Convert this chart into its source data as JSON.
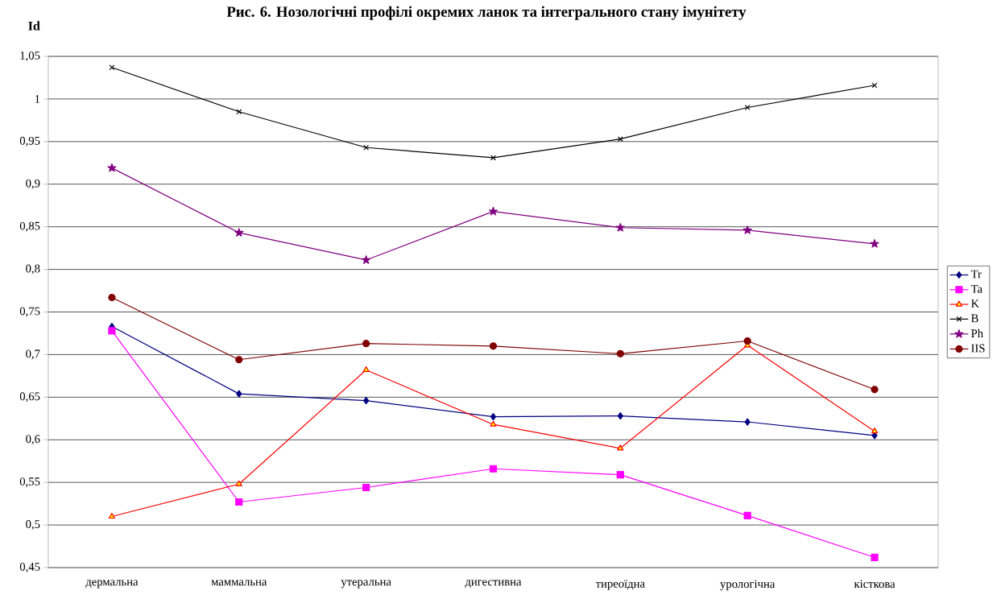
{
  "chart_data": {
    "type": "line",
    "title": "Рис. 6. Нозологічні профілі окремих ланок та інтегрального стану імунітету",
    "ylabel": "Id",
    "categories": [
      "дермальна",
      "маммальна",
      "утеральна",
      "дигестивна",
      "тиреоїдна",
      "урологічна",
      "кісткова"
    ],
    "series": [
      {
        "name": "Tr",
        "color": "#000080",
        "marker": "diamond",
        "values": [
          0.733,
          0.654,
          0.646,
          0.627,
          0.628,
          0.621,
          0.605
        ]
      },
      {
        "name": "Ta",
        "color": "#ff00ff",
        "marker": "square",
        "values": [
          0.728,
          0.527,
          0.544,
          0.566,
          0.559,
          0.511,
          0.462
        ]
      },
      {
        "name": "K",
        "color": "#ff0000",
        "marker": "triangle",
        "values": [
          0.51,
          0.548,
          0.682,
          0.618,
          0.59,
          0.711,
          0.61
        ]
      },
      {
        "name": "B",
        "color": "#000000",
        "marker": "cross",
        "values": [
          1.037,
          0.985,
          0.943,
          0.931,
          0.953,
          0.99,
          1.016
        ]
      },
      {
        "name": "Ph",
        "color": "#800080",
        "marker": "star",
        "values": [
          0.919,
          0.843,
          0.811,
          0.868,
          0.849,
          0.846,
          0.83
        ]
      },
      {
        "name": "IIS",
        "color": "#800000",
        "marker": "circle",
        "values": [
          0.767,
          0.694,
          0.713,
          0.71,
          0.701,
          0.716,
          0.659
        ]
      }
    ],
    "ylim": [
      0.45,
      1.05
    ],
    "yticks": [
      {
        "value": 0.45,
        "label": "0,45"
      },
      {
        "value": 0.5,
        "label": "0,5"
      },
      {
        "value": 0.55,
        "label": "0,55"
      },
      {
        "value": 0.6,
        "label": "0,6"
      },
      {
        "value": 0.65,
        "label": "0,65"
      },
      {
        "value": 0.7,
        "label": "0,7"
      },
      {
        "value": 0.75,
        "label": "0,75"
      },
      {
        "value": 0.8,
        "label": "0,8"
      },
      {
        "value": 0.85,
        "label": "0,85"
      },
      {
        "value": 0.9,
        "label": "0,9"
      },
      {
        "value": 0.95,
        "label": "0,95"
      },
      {
        "value": 1,
        "label": "1"
      },
      {
        "value": 1.05,
        "label": "1,05"
      }
    ],
    "grid": "y",
    "legend": "right",
    "line_style": "solid"
  }
}
